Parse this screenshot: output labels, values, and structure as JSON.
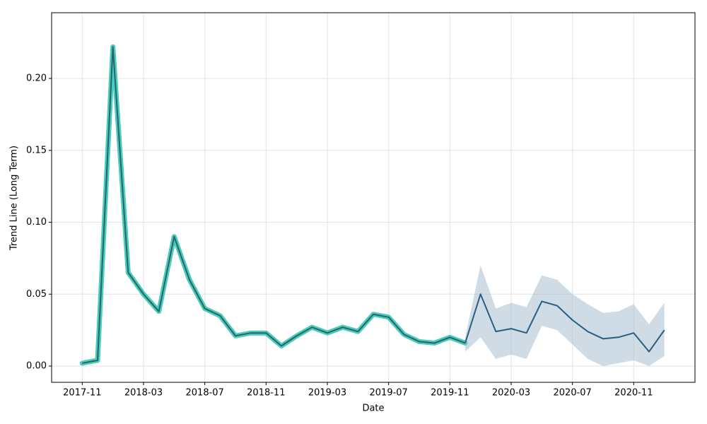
{
  "chart_data": {
    "type": "line",
    "x_label": "Date",
    "y_label": "Trend Line (Long Term)",
    "x": [
      "2017-11",
      "2017-12",
      "2018-01",
      "2018-02",
      "2018-03",
      "2018-04",
      "2018-05",
      "2018-06",
      "2018-07",
      "2018-08",
      "2018-09",
      "2018-10",
      "2018-11",
      "2018-12",
      "2019-01",
      "2019-02",
      "2019-03",
      "2019-04",
      "2019-05",
      "2019-06",
      "2019-07",
      "2019-08",
      "2019-09",
      "2019-10",
      "2019-11",
      "2019-12",
      "2020-01",
      "2020-02",
      "2020-03",
      "2020-04",
      "2020-05",
      "2020-06",
      "2020-07",
      "2020-08",
      "2020-09",
      "2020-10",
      "2020-11",
      "2020-12",
      "2021-01"
    ],
    "series": [
      {
        "color": "#2a5f80",
        "halo_color": "#48cfae",
        "values": [
          0.002,
          0.004,
          0.222,
          0.065,
          0.05,
          0.038,
          0.09,
          0.06,
          0.04,
          0.035,
          0.021,
          0.023,
          0.023,
          0.014,
          0.021,
          0.027,
          0.023,
          0.027,
          0.024,
          0.036,
          0.034,
          0.022,
          0.017,
          0.016,
          0.02,
          0.016,
          null,
          null,
          null,
          null,
          null,
          null,
          null,
          null,
          null,
          null,
          null,
          null,
          null
        ]
      },
      {
        "color": "#2a5f80",
        "band_color": "#9fb8cb",
        "values": [
          null,
          null,
          null,
          null,
          null,
          null,
          null,
          null,
          null,
          null,
          null,
          null,
          null,
          null,
          null,
          null,
          null,
          null,
          null,
          null,
          null,
          null,
          null,
          null,
          null,
          0.016,
          0.05,
          0.024,
          0.026,
          0.023,
          0.045,
          0.042,
          0.032,
          0.024,
          0.019,
          0.02,
          0.023,
          0.01,
          0.025
        ],
        "lower": [
          null,
          null,
          null,
          null,
          null,
          null,
          null,
          null,
          null,
          null,
          null,
          null,
          null,
          null,
          null,
          null,
          null,
          null,
          null,
          null,
          null,
          null,
          null,
          null,
          null,
          0.01,
          0.02,
          0.005,
          0.008,
          0.005,
          0.028,
          0.025,
          0.015,
          0.005,
          0,
          0.002,
          0.004,
          0,
          0.007
        ],
        "upper": [
          null,
          null,
          null,
          null,
          null,
          null,
          null,
          null,
          null,
          null,
          null,
          null,
          null,
          null,
          null,
          null,
          null,
          null,
          null,
          null,
          null,
          null,
          null,
          null,
          null,
          0.02,
          0.07,
          0.04,
          0.044,
          0.041,
          0.063,
          0.06,
          0.05,
          0.043,
          0.037,
          0.038,
          0.043,
          0.029,
          0.044
        ]
      }
    ],
    "xlim": [
      "2017-09",
      "2021-03"
    ],
    "xticks": [
      "2017-11",
      "2018-03",
      "2018-07",
      "2018-11",
      "2019-03",
      "2019-07",
      "2019-11",
      "2020-03",
      "2020-07",
      "2020-11"
    ],
    "ylim": [
      -0.0113,
      0.2457
    ],
    "yticks": [
      {
        "value": 0,
        "label": "0.00"
      },
      {
        "value": 0.05,
        "label": "0.05"
      },
      {
        "value": 0.1,
        "label": "0.10"
      },
      {
        "value": 0.15,
        "label": "0.15"
      },
      {
        "value": 0.2,
        "label": "0.20"
      }
    ],
    "grid": true
  }
}
